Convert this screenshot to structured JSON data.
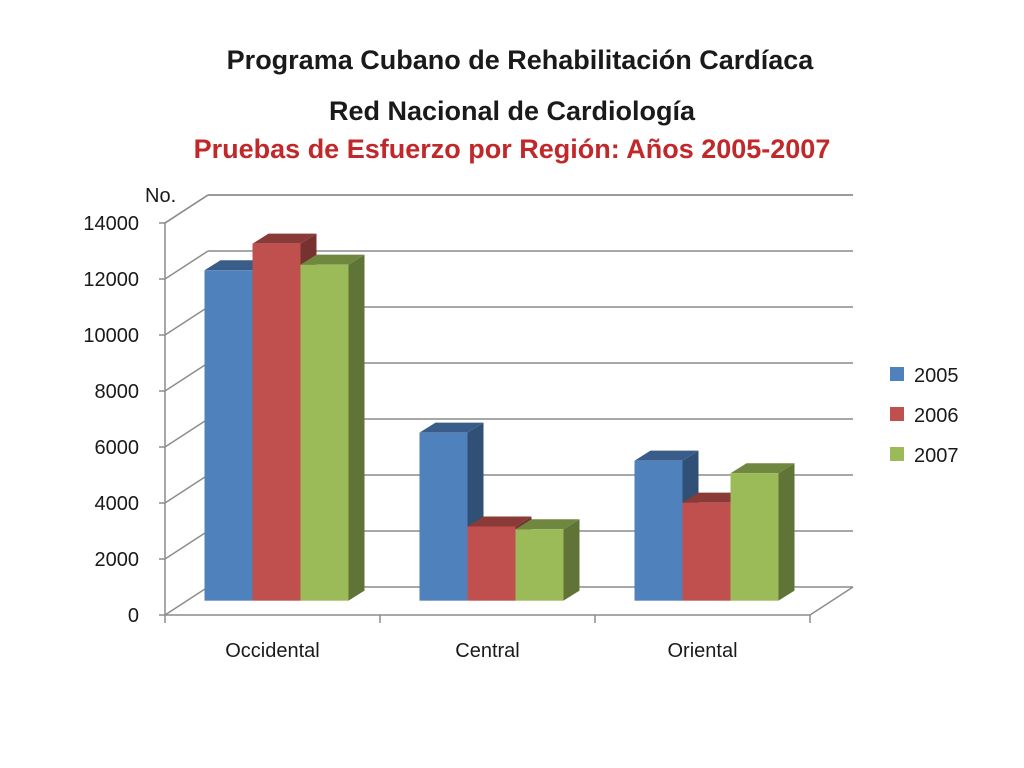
{
  "header": {
    "title": "Programa Cubano de Rehabilitación Cardíaca",
    "subtitle": "Red Nacional de Cardiología",
    "chart_title": "Pruebas de Esfuerzo por Región: Años 2005-2007"
  },
  "chart_data": {
    "type": "bar",
    "title": "Pruebas de Esfuerzo por Región: Años 2005-2007",
    "xlabel": "",
    "ylabel": "No.",
    "ylim": [
      0,
      14000
    ],
    "yticks": [
      0,
      2000,
      4000,
      6000,
      8000,
      10000,
      12000,
      14000
    ],
    "categories": [
      "Occidental",
      "Central",
      "Oriental"
    ],
    "series": [
      {
        "name": "2005",
        "color": "#4f81bd",
        "values": [
          11800,
          6000,
          5000
        ]
      },
      {
        "name": "2006",
        "color": "#c0504d",
        "values": [
          12750,
          2650,
          3500
        ]
      },
      {
        "name": "2007",
        "color": "#9bbb59",
        "values": [
          12000,
          2550,
          4550
        ]
      }
    ],
    "grid": true,
    "legend": "right",
    "style": "3d-clustered-column"
  }
}
